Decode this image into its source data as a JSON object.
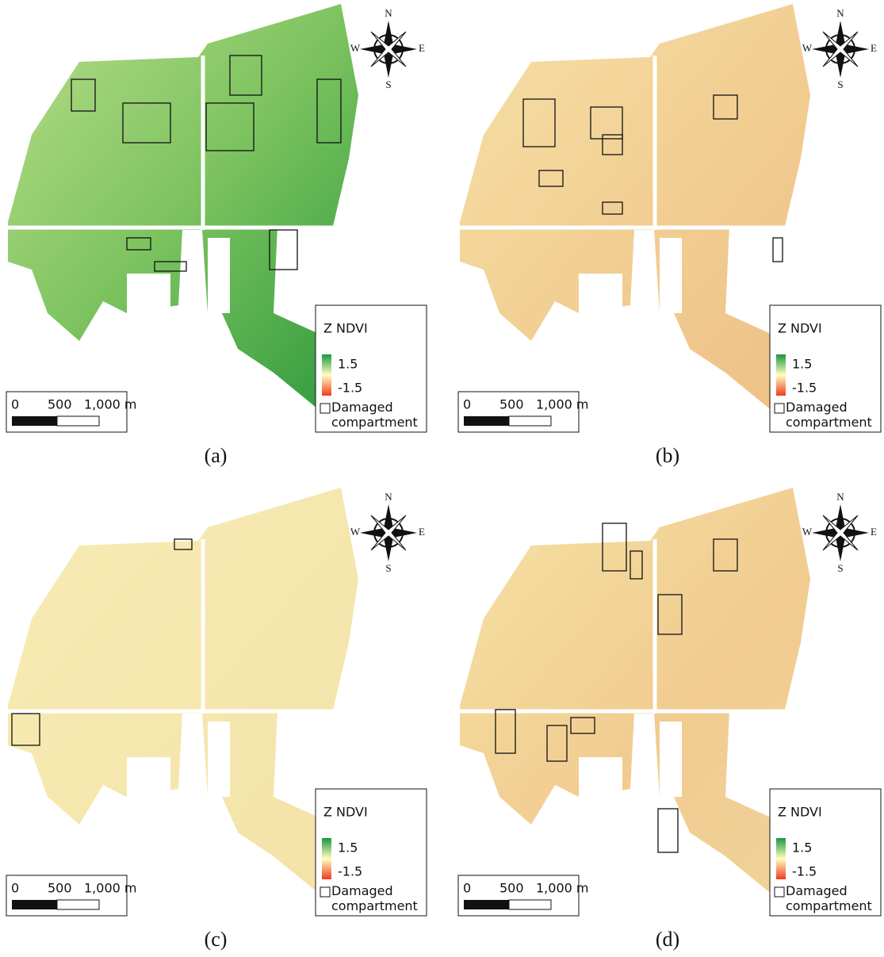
{
  "panels": [
    {
      "label": "(a)",
      "compass": {
        "north": "N",
        "east": "E",
        "south": "S",
        "west": "W"
      },
      "scale_bar": {
        "ticks": [
          "0",
          "500",
          "1,000 m"
        ]
      },
      "legend": {
        "title": "Z NDVI",
        "max": "1.5",
        "min": "-1.5",
        "damaged": "Damaged compartment"
      }
    },
    {
      "label": "(b)",
      "compass": {
        "north": "N",
        "east": "E",
        "south": "S",
        "west": "W"
      },
      "scale_bar": {
        "ticks": [
          "0",
          "500",
          "1,000 m"
        ]
      },
      "legend": {
        "title": "Z NDVI",
        "max": "1.5",
        "min": "-1.5",
        "damaged": "Damaged compartment"
      }
    },
    {
      "label": "(c)",
      "compass": {
        "north": "N",
        "east": "E",
        "south": "S",
        "west": "W"
      },
      "scale_bar": {
        "ticks": [
          "0",
          "500",
          "1,000 m"
        ]
      },
      "legend": {
        "title": "Z NDVI",
        "max": "1.5",
        "min": "-1.5",
        "damaged": "Damaged compartment"
      }
    },
    {
      "label": "(d)",
      "compass": {
        "north": "N",
        "east": "E",
        "south": "S",
        "west": "W"
      },
      "scale_bar": {
        "ticks": [
          "0",
          "500",
          "1,000 m"
        ]
      },
      "legend": {
        "title": "Z NDVI",
        "max": "1.5",
        "min": "-1.5",
        "damaged": "Damaged compartment"
      }
    }
  ]
}
